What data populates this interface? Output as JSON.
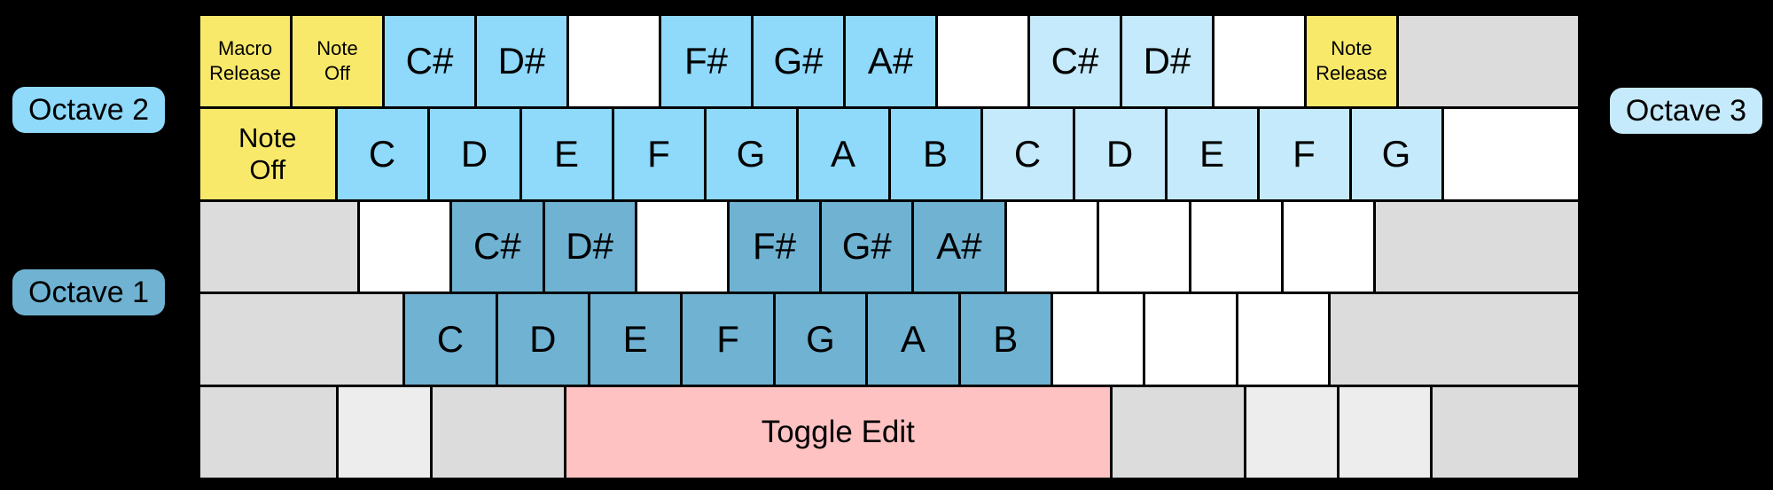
{
  "colors": {
    "background": "#000000",
    "octave1": "#6FB2D2",
    "octave2": "#8FD9FA",
    "octave3": "#C5EAFB",
    "macro": "#F9E96A",
    "toggle": "#FFC2C2",
    "gray": "#DCDCDC",
    "gray_light": "#EDEDED",
    "blank": "#FFFFFF",
    "key_text": "#000000"
  },
  "octave_labels": {
    "left_top": {
      "text": "Octave 2"
    },
    "left_bottom": {
      "text": "Octave 1"
    },
    "right": {
      "text": "Octave 3"
    }
  },
  "rows": [
    {
      "keys": [
        {
          "label": "Macro\nRelease",
          "type": "macro",
          "w": 1,
          "size": "sm"
        },
        {
          "label": "Note\nOff",
          "type": "macro",
          "w": 1,
          "size": "sm"
        },
        {
          "label": "C#",
          "type": "oct2",
          "w": 1
        },
        {
          "label": "D#",
          "type": "oct2",
          "w": 1
        },
        {
          "label": "",
          "type": "blank",
          "w": 1
        },
        {
          "label": "F#",
          "type": "oct2",
          "w": 1
        },
        {
          "label": "G#",
          "type": "oct2",
          "w": 1
        },
        {
          "label": "A#",
          "type": "oct2",
          "w": 1
        },
        {
          "label": "",
          "type": "blank",
          "w": 1
        },
        {
          "label": "C#",
          "type": "oct3",
          "w": 1
        },
        {
          "label": "D#",
          "type": "oct3",
          "w": 1
        },
        {
          "label": "",
          "type": "blank",
          "w": 1
        },
        {
          "label": "Note\nRelease",
          "type": "macro",
          "w": 1,
          "size": "sm"
        },
        {
          "label": "",
          "type": "gray",
          "w": 2
        }
      ]
    },
    {
      "keys": [
        {
          "label": "Note\nOff",
          "type": "macro",
          "w": 1.5,
          "size": "md"
        },
        {
          "label": "C",
          "type": "oct2",
          "w": 1
        },
        {
          "label": "D",
          "type": "oct2",
          "w": 1
        },
        {
          "label": "E",
          "type": "oct2",
          "w": 1
        },
        {
          "label": "F",
          "type": "oct2",
          "w": 1
        },
        {
          "label": "G",
          "type": "oct2",
          "w": 1
        },
        {
          "label": "A",
          "type": "oct2",
          "w": 1
        },
        {
          "label": "B",
          "type": "oct2",
          "w": 1
        },
        {
          "label": "C",
          "type": "oct3",
          "w": 1
        },
        {
          "label": "D",
          "type": "oct3",
          "w": 1
        },
        {
          "label": "E",
          "type": "oct3",
          "w": 1
        },
        {
          "label": "F",
          "type": "oct3",
          "w": 1
        },
        {
          "label": "G",
          "type": "oct3",
          "w": 1
        },
        {
          "label": "",
          "type": "blank",
          "w": 1.5
        }
      ]
    },
    {
      "keys": [
        {
          "label": "",
          "type": "gray",
          "w": 1.75
        },
        {
          "label": "",
          "type": "blank",
          "w": 1
        },
        {
          "label": "C#",
          "type": "oct1",
          "w": 1
        },
        {
          "label": "D#",
          "type": "oct1",
          "w": 1
        },
        {
          "label": "",
          "type": "blank",
          "w": 1
        },
        {
          "label": "F#",
          "type": "oct1",
          "w": 1
        },
        {
          "label": "G#",
          "type": "oct1",
          "w": 1
        },
        {
          "label": "A#",
          "type": "oct1",
          "w": 1
        },
        {
          "label": "",
          "type": "blank",
          "w": 1
        },
        {
          "label": "",
          "type": "blank",
          "w": 1
        },
        {
          "label": "",
          "type": "blank",
          "w": 1
        },
        {
          "label": "",
          "type": "blank",
          "w": 1
        },
        {
          "label": "",
          "type": "gray",
          "w": 2.25
        }
      ]
    },
    {
      "keys": [
        {
          "label": "",
          "type": "gray",
          "w": 2.25
        },
        {
          "label": "C",
          "type": "oct1",
          "w": 1
        },
        {
          "label": "D",
          "type": "oct1",
          "w": 1
        },
        {
          "label": "E",
          "type": "oct1",
          "w": 1
        },
        {
          "label": "F",
          "type": "oct1",
          "w": 1
        },
        {
          "label": "G",
          "type": "oct1",
          "w": 1
        },
        {
          "label": "A",
          "type": "oct1",
          "w": 1
        },
        {
          "label": "B",
          "type": "oct1",
          "w": 1
        },
        {
          "label": "",
          "type": "blank",
          "w": 1
        },
        {
          "label": "",
          "type": "blank",
          "w": 1
        },
        {
          "label": "",
          "type": "blank",
          "w": 1
        },
        {
          "label": "",
          "type": "gray",
          "w": 2.75
        }
      ]
    },
    {
      "keys": [
        {
          "label": "",
          "type": "gray",
          "w": 1.5
        },
        {
          "label": "",
          "type": "graylight",
          "w": 1
        },
        {
          "label": "",
          "type": "gray",
          "w": 1.45
        },
        {
          "label": "Toggle Edit",
          "type": "toggle",
          "w": 6,
          "size": "tg"
        },
        {
          "label": "",
          "type": "gray",
          "w": 1.45
        },
        {
          "label": "",
          "type": "graylight",
          "w": 1
        },
        {
          "label": "",
          "type": "graylight",
          "w": 1
        },
        {
          "label": "",
          "type": "gray",
          "w": 1.6
        }
      ]
    }
  ]
}
